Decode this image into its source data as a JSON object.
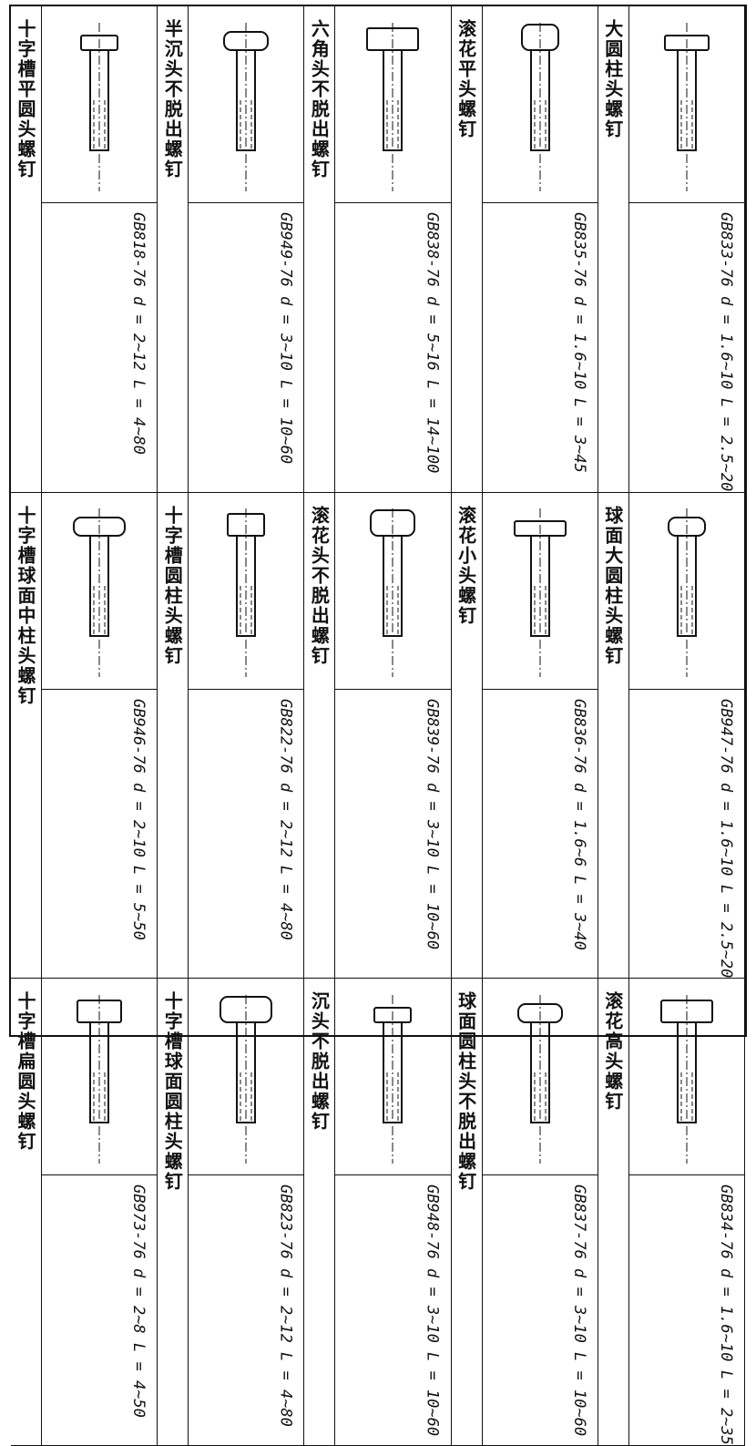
{
  "cells": [
    {
      "name": "十字槽平圆头螺钉",
      "standard": "GB818-76",
      "d": "d = 2~12",
      "L": "L = 4~80"
    },
    {
      "name": "半沉头不脱出螺钉",
      "standard": "GB949-76",
      "d": "d = 3~10",
      "L": "L = 10~60"
    },
    {
      "name": "六角头不脱出螺钉",
      "standard": "GB838-76",
      "d": "d = 5~16",
      "L": "L = 14~100"
    },
    {
      "name": "滚花平头螺钉",
      "standard": "GB835-76",
      "d": "d = 1.6~10",
      "L": "L = 3~45"
    },
    {
      "name": "大圆柱头螺钉",
      "standard": "GB833-76",
      "d": "d = 1.6~10",
      "L": "L = 2.5~20"
    },
    {
      "name": "十字槽球面中柱头螺钉",
      "standard": "GB946-76",
      "d": "d = 2~10",
      "L": "L = 5~50"
    },
    {
      "name": "十字槽圆柱头螺钉",
      "standard": "GB822-76",
      "d": "d = 2~12",
      "L": "L = 4~80"
    },
    {
      "name": "滚花头不脱出螺钉",
      "standard": "GB839-76",
      "d": "d = 3~10",
      "L": "L = 10~60"
    },
    {
      "name": "滚花小头螺钉",
      "standard": "GB836-76",
      "d": "d = 1.6~6",
      "L": "L = 3~40"
    },
    {
      "name": "球面大圆柱头螺钉",
      "standard": "GB947-76",
      "d": "d = 1.6~10",
      "L": "L = 2.5~20"
    },
    {
      "name": "十字槽扁圆头螺钉",
      "standard": "GB973-76",
      "d": "d = 2~8",
      "L": "L = 4~50"
    },
    {
      "name": "十字槽球面圆柱头螺钉",
      "standard": "GB823-76",
      "d": "d = 2~12",
      "L": "L = 4~80"
    },
    {
      "name": "沉头不脱出螺钉",
      "standard": "GB948-76",
      "d": "d = 3~10",
      "L": "L = 10~60"
    },
    {
      "name": "球面圆柱头不脱出螺钉",
      "standard": "GB837-76",
      "d": "d = 3~10",
      "L": "L = 10~60"
    },
    {
      "name": "滚花高头螺钉",
      "standard": "GB834-76",
      "d": "d = 1.6~10",
      "L": "L = 2~35"
    }
  ]
}
